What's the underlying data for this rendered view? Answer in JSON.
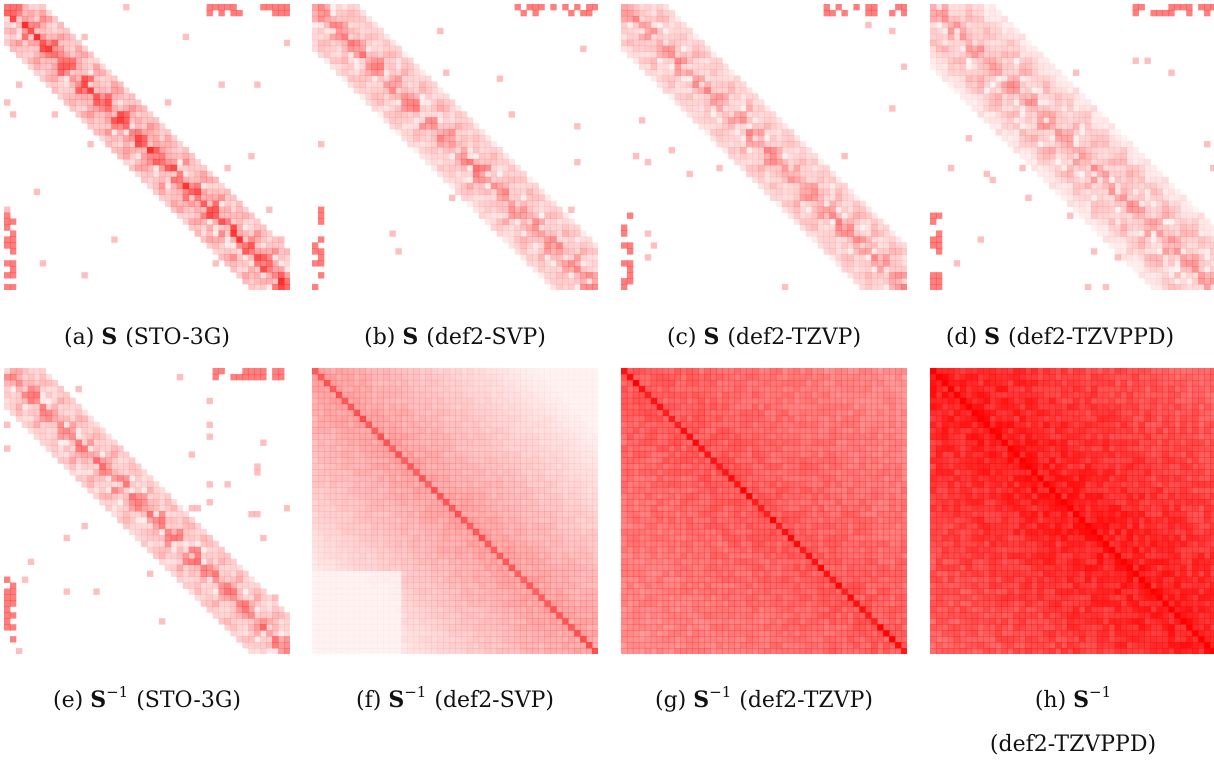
{
  "figure": {
    "panels": [
      {
        "id": "a",
        "letter": "(a)",
        "symbol": "S",
        "power": "",
        "basis": "(STO-3G)",
        "pattern": "banded",
        "band": 0.13,
        "density": 0.82
      },
      {
        "id": "b",
        "letter": "(b)",
        "symbol": "S",
        "power": "",
        "basis": "(def2-SVP)",
        "pattern": "banded",
        "band": 0.15,
        "density": 0.55
      },
      {
        "id": "c",
        "letter": "(c)",
        "symbol": "S",
        "power": "",
        "basis": "(def2-TZVP)",
        "pattern": "banded",
        "band": 0.16,
        "density": 0.5
      },
      {
        "id": "d",
        "letter": "(d)",
        "symbol": "S",
        "power": "",
        "basis": "(def2-TZVPPD)",
        "pattern": "banded",
        "band": 0.22,
        "density": 0.45
      },
      {
        "id": "e",
        "letter": "(e)",
        "symbol": "S",
        "power": "−1",
        "basis": "(STO-3G)",
        "pattern": "banded",
        "band": 0.14,
        "density": 0.6
      },
      {
        "id": "f",
        "letter": "(f)",
        "symbol": "S",
        "power": "−1",
        "basis": "(def2-SVP)",
        "pattern": "dense-light",
        "band": 1,
        "density": 0.4
      },
      {
        "id": "g",
        "letter": "(g)",
        "symbol": "S",
        "power": "−1",
        "basis": "(def2-TZVP)",
        "pattern": "dense-medium",
        "band": 1,
        "density": 0.7
      },
      {
        "id": "h",
        "letter": "(h)",
        "symbol": "S",
        "power": "−1",
        "basis": "(def2-TZVPPD)",
        "pattern": "dense-full",
        "band": 1,
        "density": 0.97
      }
    ]
  },
  "colors": {
    "base": "#ff0000",
    "background": "#ffffff"
  }
}
